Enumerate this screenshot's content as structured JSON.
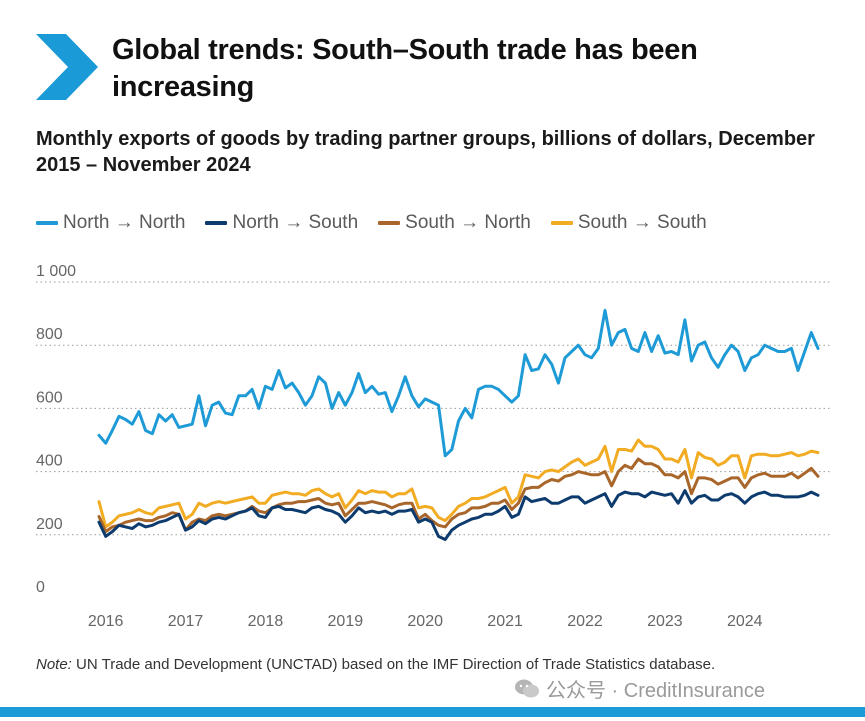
{
  "title": "Global trends: South–South trade has been increasing",
  "subtitle": "Monthly exports of goods by trading partner groups, billions of dollars, December 2015 – November 2024",
  "note_label": "Note:",
  "note_text": " UN Trade and Development (UNCTAD) based on the IMF Direction of Trade Statistics database.",
  "watermark": "公众号 · CreditInsurance",
  "colors": {
    "accent": "#1a9ad6",
    "north_north": "#1e9ad6",
    "north_south": "#0d3b6e",
    "south_north": "#a8662a",
    "south_south": "#f2ac23"
  },
  "chart_data": {
    "type": "line",
    "title": "",
    "xlabel": "",
    "ylabel": "",
    "ylim": [
      0,
      1000
    ],
    "yticks": [
      0,
      200,
      400,
      600,
      800,
      1000
    ],
    "ytick_labels": [
      "0",
      "200",
      "400",
      "600",
      "800",
      "1 000"
    ],
    "xtick_labels": [
      "2016",
      "2017",
      "2018",
      "2019",
      "2020",
      "2021",
      "2022",
      "2023",
      "2024"
    ],
    "grid": "horizontal dotted",
    "legend_position": "top",
    "x_start": "2015-12",
    "x_end": "2024-11",
    "series": [
      {
        "name": "North → North",
        "values": [
          515,
          490,
          530,
          575,
          565,
          550,
          590,
          530,
          520,
          580,
          560,
          580,
          540,
          545,
          550,
          640,
          545,
          610,
          620,
          585,
          580,
          640,
          640,
          660,
          600,
          670,
          660,
          720,
          665,
          680,
          650,
          610,
          640,
          700,
          680,
          600,
          650,
          610,
          650,
          710,
          650,
          670,
          645,
          650,
          590,
          640,
          700,
          640,
          605,
          630,
          620,
          610,
          450,
          470,
          560,
          600,
          570,
          660,
          670,
          670,
          660,
          640,
          620,
          640,
          770,
          720,
          725,
          770,
          740,
          680,
          760,
          780,
          800,
          770,
          760,
          790,
          910,
          800,
          840,
          850,
          790,
          780,
          840,
          780,
          830,
          775,
          780,
          770,
          880,
          750,
          800,
          810,
          760,
          730,
          770,
          800,
          780,
          720,
          760,
          770,
          800,
          790,
          780,
          780,
          790,
          720,
          780,
          840,
          790
        ]
      },
      {
        "name": "North → South",
        "values": [
          240,
          195,
          210,
          230,
          225,
          220,
          235,
          225,
          230,
          240,
          245,
          255,
          265,
          215,
          225,
          245,
          235,
          250,
          255,
          250,
          260,
          270,
          275,
          285,
          260,
          255,
          285,
          290,
          280,
          280,
          275,
          270,
          285,
          290,
          280,
          275,
          265,
          240,
          260,
          285,
          270,
          275,
          270,
          275,
          265,
          275,
          275,
          280,
          240,
          250,
          240,
          195,
          185,
          215,
          230,
          240,
          250,
          255,
          265,
          265,
          275,
          290,
          255,
          265,
          320,
          305,
          310,
          315,
          300,
          300,
          310,
          320,
          320,
          300,
          310,
          320,
          330,
          290,
          325,
          335,
          330,
          330,
          320,
          335,
          330,
          325,
          330,
          300,
          340,
          300,
          320,
          325,
          310,
          310,
          325,
          330,
          320,
          300,
          320,
          330,
          335,
          325,
          325,
          320,
          320,
          320,
          325,
          335,
          325
        ]
      },
      {
        "name": "South → North",
        "values": [
          258,
          210,
          225,
          230,
          240,
          245,
          250,
          245,
          245,
          255,
          260,
          270,
          265,
          215,
          240,
          250,
          245,
          260,
          265,
          260,
          265,
          270,
          275,
          290,
          275,
          270,
          285,
          295,
          300,
          300,
          305,
          305,
          310,
          315,
          300,
          295,
          300,
          260,
          280,
          300,
          300,
          305,
          300,
          295,
          285,
          295,
          300,
          300,
          250,
          265,
          245,
          230,
          225,
          250,
          265,
          270,
          285,
          285,
          290,
          300,
          300,
          310,
          280,
          300,
          345,
          350,
          350,
          365,
          375,
          370,
          385,
          390,
          400,
          395,
          390,
          390,
          400,
          355,
          400,
          420,
          410,
          440,
          425,
          425,
          415,
          390,
          390,
          380,
          400,
          330,
          380,
          380,
          375,
          360,
          370,
          380,
          380,
          350,
          380,
          390,
          395,
          385,
          385,
          385,
          395,
          380,
          395,
          410,
          385
        ]
      },
      {
        "name": "South → South",
        "values": [
          305,
          225,
          240,
          260,
          265,
          270,
          280,
          270,
          265,
          285,
          290,
          295,
          300,
          250,
          265,
          300,
          290,
          300,
          305,
          300,
          305,
          310,
          315,
          320,
          300,
          300,
          325,
          330,
          335,
          330,
          330,
          325,
          340,
          345,
          330,
          320,
          330,
          285,
          310,
          340,
          330,
          340,
          335,
          335,
          320,
          330,
          330,
          345,
          285,
          290,
          285,
          255,
          245,
          265,
          290,
          300,
          315,
          315,
          320,
          330,
          340,
          350,
          300,
          320,
          390,
          385,
          380,
          400,
          405,
          400,
          415,
          430,
          440,
          420,
          430,
          440,
          480,
          400,
          470,
          470,
          465,
          500,
          480,
          480,
          470,
          440,
          440,
          430,
          470,
          380,
          460,
          445,
          440,
          420,
          430,
          450,
          450,
          380,
          450,
          455,
          455,
          450,
          450,
          455,
          460,
          450,
          455,
          465,
          460
        ]
      }
    ]
  }
}
